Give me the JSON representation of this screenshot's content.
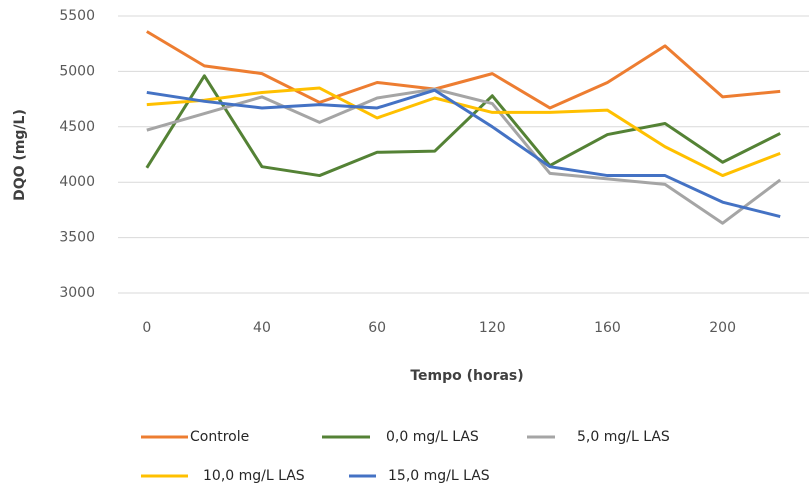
{
  "chart_data": {
    "type": "line",
    "x_label": "Tempo (horas)",
    "y_label": "DQO (mg/L)",
    "categories": [
      "0",
      null,
      "40",
      null,
      "60",
      null,
      "120",
      null,
      "160",
      null,
      "200",
      null
    ],
    "ylim": [
      3000,
      5500
    ],
    "yticks": [
      3000,
      3500,
      4000,
      4500,
      5000,
      5500
    ],
    "grid": true,
    "series": [
      {
        "name": "Controle",
        "color": "#ED7D31",
        "values": [
          5360,
          5050,
          4980,
          4720,
          4900,
          4840,
          4980,
          4670,
          4900,
          5230,
          4770,
          4820
        ]
      },
      {
        "name": "0,0 mg/L LAS",
        "color": "#548235",
        "values": [
          4130,
          4960,
          4140,
          4060,
          4270,
          4280,
          4780,
          4150,
          4430,
          4530,
          4180,
          4440
        ]
      },
      {
        "name": "5,0 mg/L LAS",
        "color": "#A5A5A5",
        "values": [
          4470,
          4620,
          4770,
          4540,
          4760,
          4840,
          4710,
          4080,
          4030,
          3980,
          3630,
          4020
        ]
      },
      {
        "name": "10,0 mg/L LAS",
        "color": "#FFC000",
        "values": [
          4700,
          4740,
          4810,
          4850,
          4580,
          4760,
          4630,
          4630,
          4650,
          4320,
          4060,
          4260
        ]
      },
      {
        "name": "15,0 mg/L LAS",
        "color": "#4472C4",
        "values": [
          4810,
          4730,
          4670,
          4700,
          4670,
          4830,
          4500,
          4140,
          4060,
          4060,
          3820,
          3690
        ]
      }
    ]
  }
}
